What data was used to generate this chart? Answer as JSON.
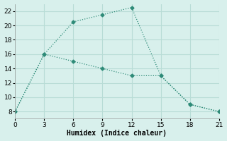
{
  "line1_x": [
    0,
    3,
    6,
    9,
    12,
    15,
    18,
    21
  ],
  "line1_y": [
    8,
    16,
    20.5,
    21.5,
    22.5,
    13,
    9,
    8
  ],
  "line2_x": [
    0,
    3,
    6,
    9,
    12,
    15,
    18,
    21
  ],
  "line2_y": [
    8,
    16,
    15,
    14,
    13,
    13,
    9,
    8
  ],
  "line_color": "#2e8b78",
  "bg_color": "#d8f0ec",
  "grid_color": "#b8dcd6",
  "xlabel": "Humidex (Indice chaleur)",
  "xlim": [
    0,
    21
  ],
  "ylim": [
    7,
    23
  ],
  "xticks": [
    0,
    3,
    6,
    9,
    12,
    15,
    18,
    21
  ],
  "yticks": [
    8,
    10,
    12,
    14,
    16,
    18,
    20,
    22
  ],
  "xlabel_fontsize": 7,
  "tick_fontsize": 6.5,
  "marker": "D",
  "marker_size": 2.5,
  "line_width": 0.9
}
